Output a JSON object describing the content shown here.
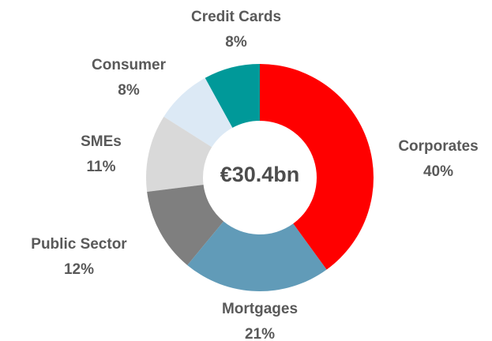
{
  "chart_data": {
    "type": "donut",
    "center_label": "€30.4bn",
    "categories": [
      "Corporates",
      "Mortgages",
      "Public Sector",
      "SMEs",
      "Consumer",
      "Credit Cards"
    ],
    "values": [
      40,
      21,
      12,
      11,
      8,
      8
    ],
    "value_labels": [
      "40%",
      "21%",
      "12%",
      "11%",
      "8%",
      "8%"
    ],
    "colors": [
      "#ff0000",
      "#619bb8",
      "#7f7f7f",
      "#d9d9d9",
      "#dce9f5",
      "#009999"
    ]
  }
}
